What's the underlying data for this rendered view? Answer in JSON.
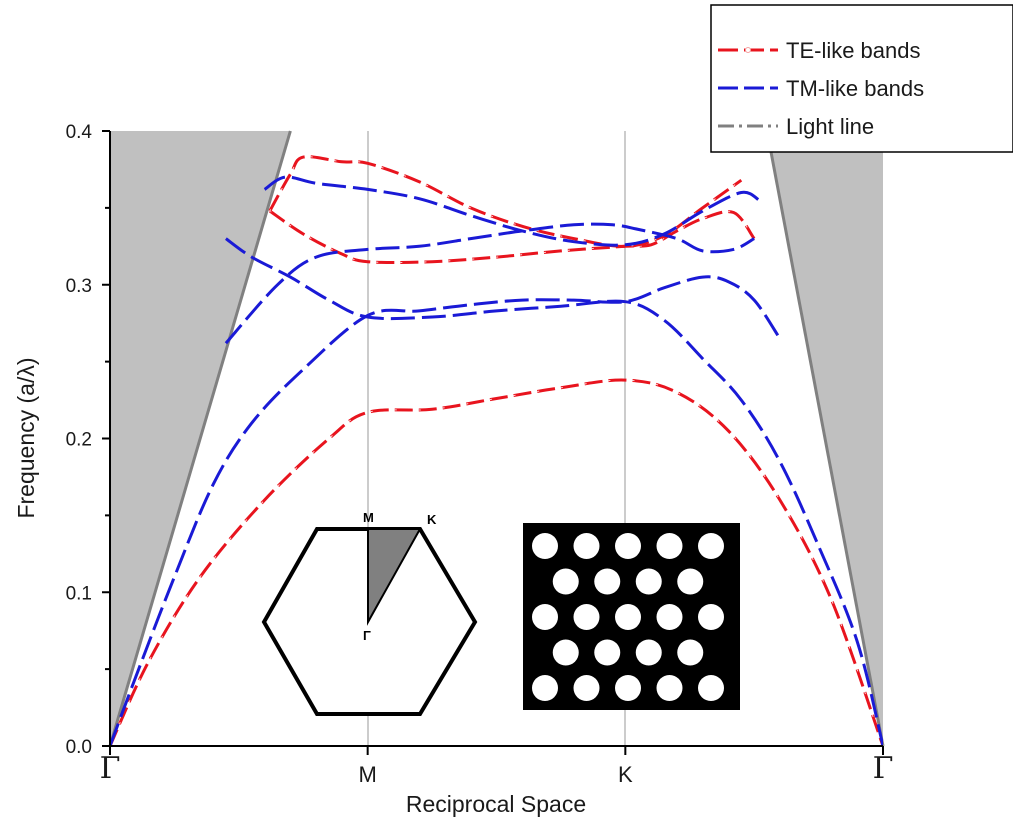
{
  "chart_data": {
    "type": "line",
    "xlabel": "Reciprocal Space",
    "ylabel": "Frequency (a/λ)",
    "ylim": [
      0,
      0.4
    ],
    "yticks": [
      "0.0",
      "0.1",
      "0.2",
      "0.3",
      "0.4"
    ],
    "xticks": [
      "Γ",
      "M",
      "K",
      "Γ"
    ],
    "x_range": [
      0,
      3
    ],
    "grid": "vertical lines at M and K",
    "legend_position": "top-right",
    "legend": [
      {
        "label": "TE-like bands",
        "color": "#e8141e",
        "style": "dash"
      },
      {
        "label": "TM-like bands",
        "color": "#1a1ad6",
        "style": "dash"
      },
      {
        "label": "Light line",
        "color": "#808080",
        "style": "dash-dot"
      }
    ],
    "colors": {
      "te": "#e8141e",
      "tm": "#1a1ad6",
      "light_cone": "#c0c0c0",
      "light_line": "#808080"
    },
    "light_line": {
      "left": [
        [
          0,
          0
        ],
        [
          0.7,
          0.4
        ]
      ],
      "right": [
        [
          3,
          0
        ],
        [
          2.55,
          0.4
        ]
      ]
    },
    "series": [
      {
        "group": "te",
        "points": [
          [
            0,
            0
          ],
          [
            0.15,
            0.055
          ],
          [
            0.35,
            0.11
          ],
          [
            0.6,
            0.16
          ],
          [
            0.85,
            0.2
          ],
          [
            1,
            0.217
          ],
          [
            1.25,
            0.219
          ],
          [
            1.5,
            0.226
          ],
          [
            1.75,
            0.233
          ],
          [
            2,
            0.238
          ],
          [
            2.2,
            0.23
          ],
          [
            2.4,
            0.205
          ],
          [
            2.6,
            0.16
          ],
          [
            2.8,
            0.095
          ],
          [
            3,
            0
          ]
        ]
      },
      {
        "group": "te",
        "points": [
          [
            0.62,
            0.348
          ],
          [
            0.75,
            0.333
          ],
          [
            0.9,
            0.32
          ],
          [
            1,
            0.315
          ],
          [
            1.25,
            0.315
          ],
          [
            1.5,
            0.318
          ],
          [
            1.75,
            0.322
          ],
          [
            2,
            0.325
          ],
          [
            2.1,
            0.326
          ],
          [
            2.2,
            0.335
          ],
          [
            2.3,
            0.343
          ],
          [
            2.42,
            0.347
          ],
          [
            2.5,
            0.33
          ]
        ]
      },
      {
        "group": "te",
        "points": [
          [
            0.62,
            0.348
          ],
          [
            0.7,
            0.372
          ],
          [
            0.75,
            0.383
          ],
          [
            0.9,
            0.38
          ],
          [
            1,
            0.379
          ],
          [
            1.2,
            0.367
          ],
          [
            1.4,
            0.35
          ],
          [
            1.6,
            0.338
          ],
          [
            1.8,
            0.33
          ],
          [
            2,
            0.325
          ],
          [
            2.15,
            0.332
          ],
          [
            2.3,
            0.35
          ],
          [
            2.45,
            0.368
          ]
        ]
      },
      {
        "group": "tm",
        "points": [
          [
            0.45,
            0.262
          ],
          [
            0.65,
            0.3
          ],
          [
            0.8,
            0.318
          ],
          [
            1,
            0.323
          ],
          [
            1.2,
            0.325
          ],
          [
            1.4,
            0.33
          ],
          [
            1.6,
            0.335
          ],
          [
            1.8,
            0.339
          ],
          [
            1.95,
            0.339
          ],
          [
            2.05,
            0.336
          ],
          [
            2.2,
            0.33
          ],
          [
            2.3,
            0.322
          ],
          [
            2.42,
            0.323
          ],
          [
            2.5,
            0.33
          ]
        ]
      },
      {
        "group": "tm",
        "points": [
          [
            0.6,
            0.362
          ],
          [
            0.68,
            0.37
          ],
          [
            0.8,
            0.366
          ],
          [
            1,
            0.362
          ],
          [
            1.2,
            0.356
          ],
          [
            1.4,
            0.345
          ],
          [
            1.6,
            0.335
          ],
          [
            1.8,
            0.328
          ],
          [
            2,
            0.326
          ],
          [
            2.15,
            0.333
          ],
          [
            2.3,
            0.348
          ],
          [
            2.45,
            0.36
          ],
          [
            2.52,
            0.355
          ]
        ]
      },
      {
        "group": "tm",
        "points": [
          [
            0,
            0
          ],
          [
            0.1,
            0.045
          ],
          [
            0.25,
            0.11
          ],
          [
            0.4,
            0.17
          ],
          [
            0.55,
            0.21
          ],
          [
            0.75,
            0.245
          ],
          [
            1,
            0.28
          ],
          [
            1.2,
            0.283
          ],
          [
            1.4,
            0.287
          ],
          [
            1.6,
            0.29
          ],
          [
            1.8,
            0.29
          ],
          [
            2,
            0.289
          ],
          [
            2.15,
            0.298
          ],
          [
            2.3,
            0.305
          ],
          [
            2.4,
            0.302
          ],
          [
            2.5,
            0.29
          ],
          [
            2.6,
            0.265
          ]
        ]
      },
      {
        "group": "tm",
        "points": [
          [
            0.45,
            0.33
          ],
          [
            0.55,
            0.318
          ],
          [
            0.7,
            0.305
          ],
          [
            0.85,
            0.29
          ],
          [
            1,
            0.279
          ],
          [
            1.25,
            0.279
          ],
          [
            1.5,
            0.283
          ],
          [
            1.75,
            0.286
          ],
          [
            2,
            0.289
          ],
          [
            2.15,
            0.277
          ],
          [
            2.3,
            0.252
          ],
          [
            2.45,
            0.225
          ],
          [
            2.6,
            0.185
          ],
          [
            2.75,
            0.13
          ],
          [
            2.9,
            0.068
          ],
          [
            3,
            0
          ]
        ]
      }
    ]
  },
  "insets": {
    "brillouin_zone": {
      "labels": [
        "M",
        "K",
        "Γ"
      ],
      "fill": "#808080"
    },
    "lattice": {
      "background": "#000000",
      "holes": "#ffffff",
      "rows": [
        5,
        4,
        5,
        4,
        5
      ]
    }
  }
}
